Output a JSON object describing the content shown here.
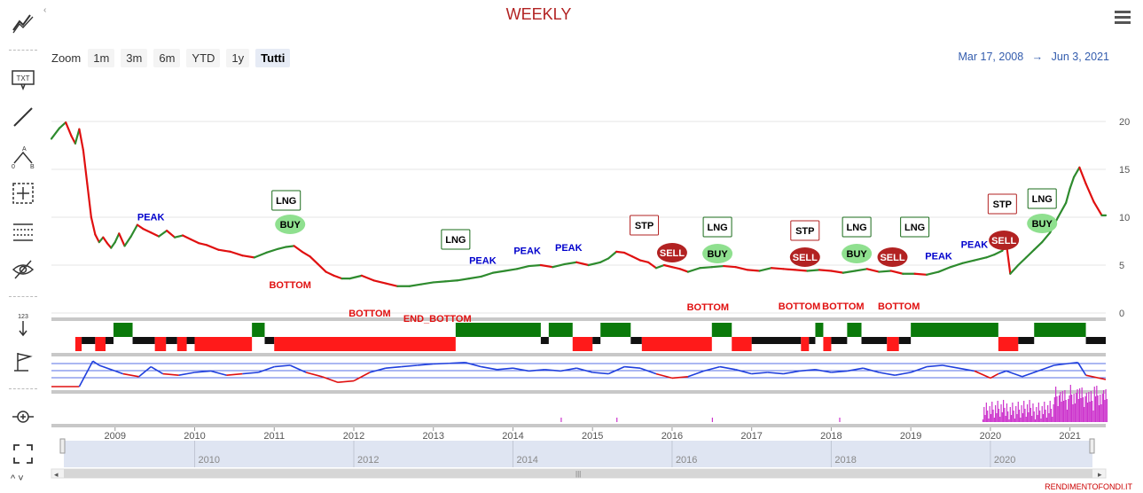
{
  "title": "WEEKLY",
  "toolbar": {
    "items": [
      "indicators-icon",
      "text-annotation-icon",
      "line-icon",
      "measure-icon",
      "crosshair-icon",
      "lines-icon",
      "hide-icon",
      "price-label-icon",
      "flag-icon",
      "zoom-icon",
      "fullscreen-icon"
    ],
    "txt_label": "TXT",
    "num_label": "123"
  },
  "zoom": {
    "label": "Zoom",
    "buttons": [
      "1m",
      "3m",
      "6m",
      "YTD",
      "1y",
      "Tutti"
    ],
    "selected": "Tutti"
  },
  "range": {
    "from": "Mar 17, 2008",
    "arrow": "→",
    "to": "Jun 3, 2021"
  },
  "watermark": "RENDIMENTOFONDI.IT",
  "colors": {
    "up": "#2e8b2e",
    "down": "#e01010",
    "accent": "#b22222",
    "peak": "#0000cc",
    "oscillator": "#1f3fdd",
    "volume": "#cc33cc"
  },
  "chart_data": {
    "type": "line",
    "title": "WEEKLY",
    "x_label": "",
    "y_label": "",
    "x_range": [
      2008.2,
      2021.45
    ],
    "y_range": [
      0,
      20
    ],
    "y_ticks": [
      0,
      5,
      10,
      15,
      20
    ],
    "x_ticks": [
      "2009",
      "2010",
      "2011",
      "2012",
      "2013",
      "2014",
      "2015",
      "2016",
      "2017",
      "2018",
      "2019",
      "2020",
      "2021"
    ],
    "navigator_ticks": [
      "2010",
      "2012",
      "2014",
      "2016",
      "2018",
      "2020"
    ],
    "series": [
      {
        "x": [
          2008.2,
          2008.3,
          2008.38,
          2008.45,
          2008.5,
          2008.55,
          2008.6,
          2008.65,
          2008.7,
          2008.75,
          2008.8,
          2008.85,
          2008.9,
          2008.95,
          2009.0,
          2009.05,
          2009.12,
          2009.2,
          2009.28,
          2009.35,
          2009.45,
          2009.55,
          2009.65,
          2009.75,
          2009.85,
          2009.95,
          2010.05,
          2010.15,
          2010.3,
          2010.45,
          2010.6,
          2010.75,
          2010.9,
          2011.05,
          2011.15,
          2011.25,
          2011.35,
          2011.45,
          2011.55,
          2011.65,
          2011.75,
          2011.85,
          2011.95,
          2012.1,
          2012.25,
          2012.4,
          2012.55,
          2012.7,
          2012.85,
          2013.0,
          2013.15,
          2013.3,
          2013.45,
          2013.6,
          2013.75,
          2013.9,
          2014.05,
          2014.2,
          2014.35,
          2014.5,
          2014.65,
          2014.8,
          2014.95,
          2015.1,
          2015.2,
          2015.3,
          2015.4,
          2015.5,
          2015.6,
          2015.7,
          2015.8,
          2015.9,
          2016.0,
          2016.1,
          2016.2,
          2016.35,
          2016.5,
          2016.65,
          2016.8,
          2016.95,
          2017.1,
          2017.25,
          2017.4,
          2017.55,
          2017.7,
          2017.85,
          2018.0,
          2018.15,
          2018.3,
          2018.45,
          2018.6,
          2018.75,
          2018.9,
          2019.05,
          2019.2,
          2019.35,
          2019.5,
          2019.65,
          2019.8,
          2019.95,
          2020.05,
          2020.15,
          2020.2,
          2020.25,
          2020.35,
          2020.45,
          2020.55,
          2020.65,
          2020.75,
          2020.85,
          2020.95,
          2021.0,
          2021.05,
          2021.12,
          2021.2,
          2021.3,
          2021.4,
          2021.45
        ],
        "y": [
          18.2,
          19.3,
          19.9,
          18.5,
          17.7,
          19.2,
          17.0,
          13.5,
          10.0,
          8.2,
          7.4,
          7.9,
          7.3,
          6.8,
          7.4,
          8.3,
          7.0,
          8.0,
          9.2,
          8.8,
          8.4,
          8.0,
          8.6,
          7.9,
          8.1,
          7.7,
          7.3,
          7.1,
          6.6,
          6.4,
          6.0,
          5.8,
          6.3,
          6.7,
          6.9,
          7.0,
          6.4,
          5.9,
          5.1,
          4.3,
          3.9,
          3.6,
          3.6,
          3.9,
          3.4,
          3.1,
          2.8,
          2.8,
          3.0,
          3.2,
          3.3,
          3.4,
          3.6,
          3.8,
          4.2,
          4.4,
          4.6,
          4.9,
          5.0,
          4.8,
          5.1,
          5.3,
          5.0,
          5.3,
          5.7,
          6.4,
          6.3,
          5.9,
          5.5,
          5.3,
          4.7,
          5.0,
          4.8,
          4.6,
          4.3,
          4.7,
          4.8,
          4.9,
          4.8,
          4.5,
          4.4,
          4.7,
          4.6,
          4.5,
          4.4,
          4.5,
          4.4,
          4.2,
          4.4,
          4.6,
          4.3,
          4.4,
          4.1,
          4.1,
          4.0,
          4.3,
          4.8,
          5.2,
          5.5,
          5.8,
          6.1,
          6.5,
          7.3,
          4.1,
          5.0,
          5.8,
          6.6,
          7.4,
          8.4,
          10.0,
          11.5,
          13.0,
          14.2,
          15.2,
          13.5,
          11.6,
          10.2,
          10.2
        ]
      }
    ],
    "annotations": [
      {
        "label": "PEAK",
        "x": 2009.45,
        "type": "peak"
      },
      {
        "label": "PEAK",
        "x": 2013.62,
        "type": "peak"
      },
      {
        "label": "PEAK",
        "x": 2014.18,
        "type": "peak"
      },
      {
        "label": "PEAK",
        "x": 2014.7,
        "type": "peak"
      },
      {
        "label": "PEAK",
        "x": 2019.35,
        "type": "peak"
      },
      {
        "label": "PEAK",
        "x": 2019.8,
        "type": "peak"
      },
      {
        "label": "BOTTOM",
        "x": 2011.2,
        "type": "bottom"
      },
      {
        "label": "BOTTOM",
        "x": 2012.2,
        "type": "bottom"
      },
      {
        "label": "END_BOTTOM",
        "x": 2013.05,
        "type": "bottom"
      },
      {
        "label": "BOTTOM",
        "x": 2016.45,
        "type": "bottom"
      },
      {
        "label": "BOTTOM",
        "x": 2017.6,
        "type": "bottom"
      },
      {
        "label": "BOTTOM",
        "x": 2018.15,
        "type": "bottom"
      },
      {
        "label": "BOTTOM",
        "x": 2018.85,
        "type": "bottom"
      },
      {
        "label": "LNG",
        "x": 2011.15,
        "type": "lng"
      },
      {
        "label": "LNG",
        "x": 2013.28,
        "type": "lng"
      },
      {
        "label": "LNG",
        "x": 2016.57,
        "type": "lng"
      },
      {
        "label": "LNG",
        "x": 2018.32,
        "type": "lng"
      },
      {
        "label": "LNG",
        "x": 2019.05,
        "type": "lng"
      },
      {
        "label": "LNG",
        "x": 2020.65,
        "type": "lng"
      },
      {
        "label": "STP",
        "x": 2015.65,
        "type": "stp"
      },
      {
        "label": "STP",
        "x": 2017.67,
        "type": "stp"
      },
      {
        "label": "STP",
        "x": 2020.15,
        "type": "stp"
      },
      {
        "label": "BUY",
        "x": 2011.2,
        "type": "buy"
      },
      {
        "label": "BUY",
        "x": 2016.57,
        "type": "buy"
      },
      {
        "label": "BUY",
        "x": 2018.32,
        "type": "buy"
      },
      {
        "label": "BUY",
        "x": 2020.65,
        "type": "buy"
      },
      {
        "label": "SELL",
        "x": 2016.0,
        "type": "sell"
      },
      {
        "label": "SELL",
        "x": 2017.67,
        "type": "sell"
      },
      {
        "label": "SELL",
        "x": 2018.77,
        "type": "sell"
      },
      {
        "label": "SELL",
        "x": 2020.17,
        "type": "sell"
      }
    ],
    "signal_bands": [
      {
        "from": 2008.5,
        "to": 2008.58,
        "state": "down"
      },
      {
        "from": 2008.58,
        "to": 2008.75,
        "state": "flat"
      },
      {
        "from": 2008.75,
        "to": 2008.88,
        "state": "down"
      },
      {
        "from": 2008.88,
        "to": 2008.98,
        "state": "flat"
      },
      {
        "from": 2008.98,
        "to": 2009.22,
        "state": "up"
      },
      {
        "from": 2009.22,
        "to": 2009.5,
        "state": "flat"
      },
      {
        "from": 2009.5,
        "to": 2009.64,
        "state": "down"
      },
      {
        "from": 2009.64,
        "to": 2009.78,
        "state": "flat"
      },
      {
        "from": 2009.78,
        "to": 2009.9,
        "state": "down"
      },
      {
        "from": 2009.9,
        "to": 2010.0,
        "state": "flat"
      },
      {
        "from": 2010.0,
        "to": 2010.72,
        "state": "down"
      },
      {
        "from": 2010.72,
        "to": 2010.88,
        "state": "up"
      },
      {
        "from": 2010.88,
        "to": 2011.0,
        "state": "flat"
      },
      {
        "from": 2011.0,
        "to": 2013.28,
        "state": "down"
      },
      {
        "from": 2013.28,
        "to": 2014.35,
        "state": "up"
      },
      {
        "from": 2014.35,
        "to": 2014.45,
        "state": "flat"
      },
      {
        "from": 2014.45,
        "to": 2014.75,
        "state": "up"
      },
      {
        "from": 2014.75,
        "to": 2015.0,
        "state": "down"
      },
      {
        "from": 2015.0,
        "to": 2015.1,
        "state": "flat"
      },
      {
        "from": 2015.1,
        "to": 2015.48,
        "state": "up"
      },
      {
        "from": 2015.48,
        "to": 2015.62,
        "state": "flat"
      },
      {
        "from": 2015.62,
        "to": 2016.5,
        "state": "down"
      },
      {
        "from": 2016.5,
        "to": 2016.75,
        "state": "up"
      },
      {
        "from": 2016.75,
        "to": 2017.0,
        "state": "down"
      },
      {
        "from": 2017.0,
        "to": 2017.62,
        "state": "flat"
      },
      {
        "from": 2017.62,
        "to": 2017.72,
        "state": "down"
      },
      {
        "from": 2017.72,
        "to": 2017.8,
        "state": "flat"
      },
      {
        "from": 2017.8,
        "to": 2017.9,
        "state": "up"
      },
      {
        "from": 2017.9,
        "to": 2018.0,
        "state": "down"
      },
      {
        "from": 2018.0,
        "to": 2018.2,
        "state": "flat"
      },
      {
        "from": 2018.2,
        "to": 2018.38,
        "state": "up"
      },
      {
        "from": 2018.38,
        "to": 2018.7,
        "state": "flat"
      },
      {
        "from": 2018.7,
        "to": 2018.85,
        "state": "down"
      },
      {
        "from": 2018.85,
        "to": 2019.0,
        "state": "flat"
      },
      {
        "from": 2019.0,
        "to": 2020.1,
        "state": "up"
      },
      {
        "from": 2020.1,
        "to": 2020.35,
        "state": "down"
      },
      {
        "from": 2020.35,
        "to": 2020.55,
        "state": "flat"
      },
      {
        "from": 2020.55,
        "to": 2021.2,
        "state": "up"
      },
      {
        "from": 2021.2,
        "to": 2021.45,
        "state": "flat"
      }
    ],
    "oscillator": {
      "x": [
        2008.2,
        2008.55,
        2008.72,
        2008.8,
        2009.0,
        2009.1,
        2009.3,
        2009.45,
        2009.6,
        2009.8,
        2010.0,
        2010.2,
        2010.4,
        2010.6,
        2010.8,
        2011.0,
        2011.2,
        2011.4,
        2011.6,
        2011.8,
        2012.0,
        2012.2,
        2012.4,
        2012.6,
        2012.8,
        2013.0,
        2013.2,
        2013.4,
        2013.6,
        2013.8,
        2014.0,
        2014.2,
        2014.4,
        2014.6,
        2014.8,
        2015.0,
        2015.2,
        2015.4,
        2015.6,
        2015.8,
        2016.0,
        2016.2,
        2016.4,
        2016.6,
        2016.8,
        2017.0,
        2017.2,
        2017.4,
        2017.6,
        2017.8,
        2018.0,
        2018.2,
        2018.4,
        2018.6,
        2018.8,
        2019.0,
        2019.2,
        2019.4,
        2019.6,
        2019.8,
        2020.0,
        2020.1,
        2020.2,
        2020.4,
        2020.6,
        2020.8,
        2021.0,
        2021.1,
        2021.2,
        2021.45
      ],
      "y": [
        0.0,
        0.0,
        0.9,
        0.75,
        0.55,
        0.45,
        0.35,
        0.7,
        0.45,
        0.4,
        0.5,
        0.55,
        0.4,
        0.45,
        0.5,
        0.7,
        0.75,
        0.5,
        0.35,
        0.15,
        0.2,
        0.5,
        0.65,
        0.7,
        0.75,
        0.8,
        0.82,
        0.85,
        0.7,
        0.6,
        0.65,
        0.55,
        0.6,
        0.55,
        0.65,
        0.5,
        0.45,
        0.7,
        0.65,
        0.45,
        0.3,
        0.35,
        0.55,
        0.7,
        0.6,
        0.45,
        0.5,
        0.45,
        0.55,
        0.6,
        0.5,
        0.55,
        0.65,
        0.5,
        0.4,
        0.5,
        0.7,
        0.75,
        0.65,
        0.55,
        0.3,
        0.45,
        0.55,
        0.35,
        0.55,
        0.75,
        0.82,
        0.85,
        0.4,
        0.25
      ]
    },
    "volume_note": "spikes 2020-2021"
  }
}
